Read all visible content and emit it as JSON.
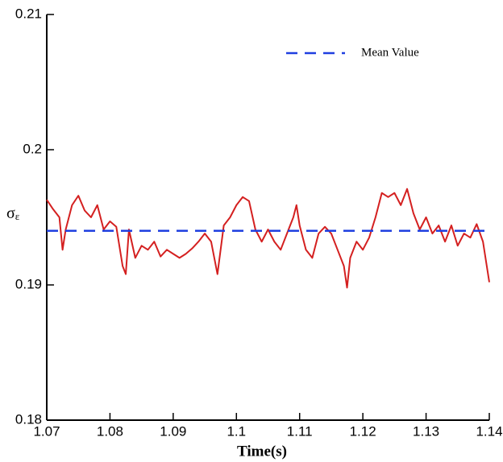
{
  "chart_data": {
    "type": "line",
    "xlabel": "Time(s)",
    "ylabel": "σ",
    "ylabel_subscript": "ε",
    "xlim": [
      1.07,
      1.14
    ],
    "xticks": [
      1.07,
      1.08,
      1.09,
      1.1,
      1.11,
      1.12,
      1.13,
      1.14
    ],
    "ylim": [
      0.18,
      0.21
    ],
    "yticks": [
      0.18,
      0.19,
      0.2,
      0.21
    ],
    "legend": "upper right",
    "series": [
      {
        "color": "#d42020",
        "dash": false,
        "x": [
          1.07,
          1.071,
          1.072,
          1.0725,
          1.073,
          1.074,
          1.075,
          1.076,
          1.077,
          1.078,
          1.079,
          1.08,
          1.081,
          1.082,
          1.0825,
          1.083,
          1.084,
          1.085,
          1.086,
          1.087,
          1.088,
          1.089,
          1.09,
          1.091,
          1.092,
          1.093,
          1.094,
          1.095,
          1.096,
          1.097,
          1.098,
          1.099,
          1.1,
          1.101,
          1.102,
          1.103,
          1.104,
          1.105,
          1.106,
          1.107,
          1.108,
          1.109,
          1.1095,
          1.11,
          1.111,
          1.112,
          1.113,
          1.114,
          1.115,
          1.116,
          1.117,
          1.1175,
          1.118,
          1.119,
          1.12,
          1.121,
          1.122,
          1.123,
          1.124,
          1.125,
          1.126,
          1.127,
          1.128,
          1.129,
          1.13,
          1.131,
          1.132,
          1.133,
          1.134,
          1.135,
          1.136,
          1.137,
          1.138,
          1.139,
          1.14
        ],
        "values": [
          0.1963,
          0.1956,
          0.195,
          0.1926,
          0.1941,
          0.1959,
          0.1966,
          0.1955,
          0.195,
          0.1959,
          0.1941,
          0.1947,
          0.1943,
          0.1914,
          0.1908,
          0.1941,
          0.192,
          0.1929,
          0.1926,
          0.1932,
          0.1921,
          0.1926,
          0.1923,
          0.192,
          0.1923,
          0.1927,
          0.1932,
          0.1938,
          0.1932,
          0.1908,
          0.1944,
          0.195,
          0.1959,
          0.1965,
          0.1962,
          0.1941,
          0.1932,
          0.1941,
          0.1932,
          0.1926,
          0.1938,
          0.195,
          0.1959,
          0.1944,
          0.1926,
          0.192,
          0.1938,
          0.1943,
          0.1938,
          0.1926,
          0.1914,
          0.1898,
          0.192,
          0.1932,
          0.1926,
          0.1935,
          0.195,
          0.1968,
          0.1965,
          0.1968,
          0.1959,
          0.1971,
          0.1953,
          0.1941,
          0.195,
          0.1938,
          0.1944,
          0.1932,
          0.1944,
          0.1929,
          0.1938,
          0.1935,
          0.1945,
          0.1932,
          0.1902
        ]
      },
      {
        "name": "Mean Value",
        "color": "#1f3fe0",
        "dash": true,
        "x": [
          1.07,
          1.14
        ],
        "values": [
          0.194,
          0.194
        ]
      }
    ]
  }
}
